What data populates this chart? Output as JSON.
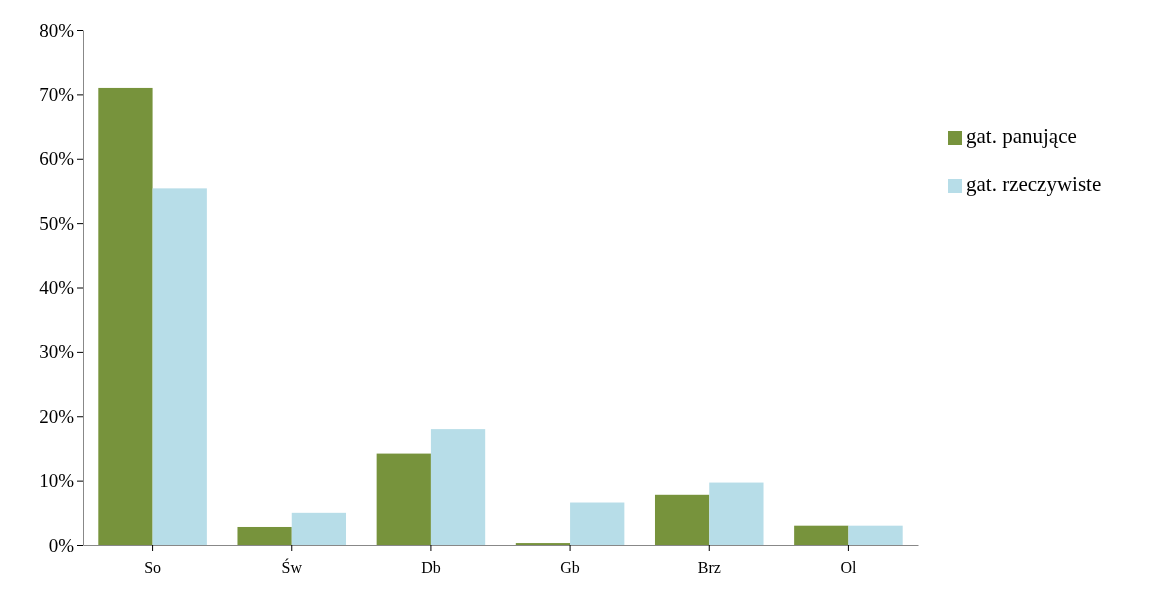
{
  "chart_data": {
    "type": "bar",
    "categories": [
      "So",
      "Św",
      "Db",
      "Gb",
      "Brz",
      "Ol"
    ],
    "series": [
      {
        "name": "gat. panujące",
        "color": "#77933c",
        "values": [
          71,
          2.8,
          14.2,
          0.3,
          7.8,
          3
        ]
      },
      {
        "name": "gat. rzeczywiste",
        "color": "#b7dde8",
        "values": [
          55.4,
          5,
          18,
          6.6,
          9.7,
          3
        ]
      }
    ],
    "ylim": [
      0,
      80
    ],
    "yticks": [
      {
        "value": 0,
        "label": "0%"
      },
      {
        "value": 10,
        "label": "10%"
      },
      {
        "value": 20,
        "label": "20%"
      },
      {
        "value": 30,
        "label": "30%"
      },
      {
        "value": 40,
        "label": "40%"
      },
      {
        "value": 50,
        "label": "50%"
      },
      {
        "value": 60,
        "label": "60%"
      },
      {
        "value": 70,
        "label": "70%"
      },
      {
        "value": 80,
        "label": "80%"
      }
    ],
    "legend": "right",
    "grid": false
  }
}
